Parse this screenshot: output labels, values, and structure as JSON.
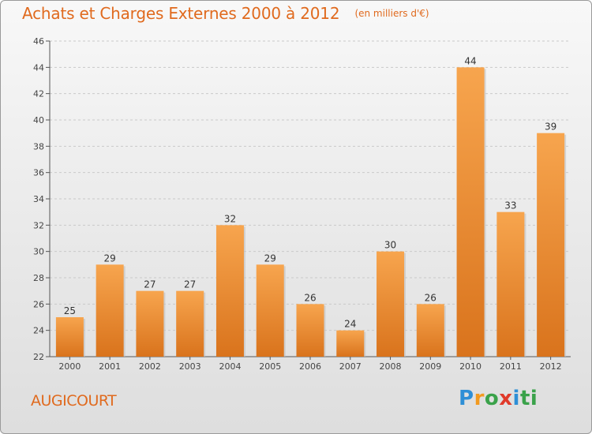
{
  "chart_data": {
    "type": "bar",
    "title": "Achats et Charges Externes 2000 à 2012",
    "unit": "(en milliers d'€)",
    "categories": [
      "2000",
      "2001",
      "2002",
      "2003",
      "2004",
      "2005",
      "2006",
      "2007",
      "2008",
      "2009",
      "2010",
      "2011",
      "2012"
    ],
    "values": [
      25,
      29,
      27,
      27,
      32,
      29,
      26,
      24,
      30,
      26,
      44,
      33,
      39
    ],
    "ylim": [
      22,
      46
    ],
    "yticks": [
      22,
      24,
      26,
      28,
      30,
      32,
      34,
      36,
      38,
      40,
      42,
      44,
      46
    ],
    "grid": "horizontal dashed",
    "bar_color_top": "#f7a54e",
    "bar_color_bottom": "#d9731c"
  },
  "footer": {
    "city": "AUGICOURT",
    "logo": [
      "P",
      "r",
      "o",
      "x",
      "i",
      "ti"
    ]
  }
}
